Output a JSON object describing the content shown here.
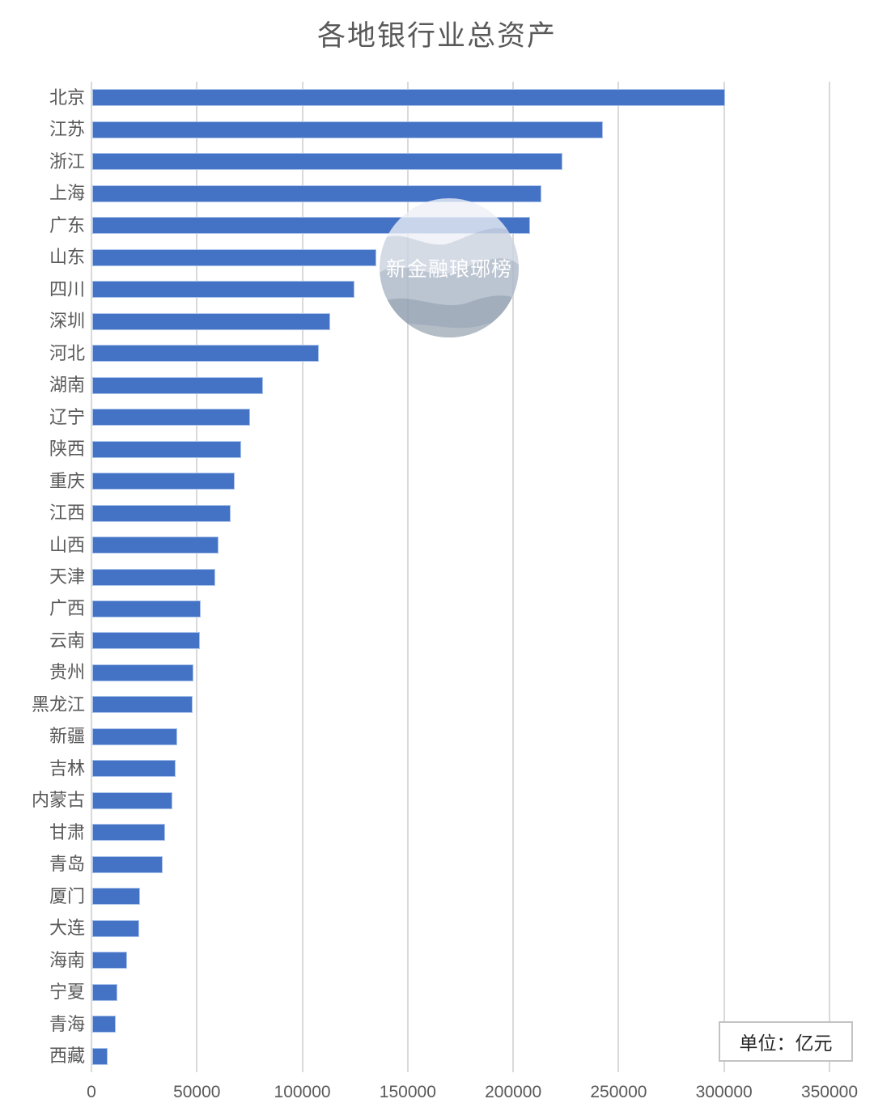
{
  "title": "各地银行业总资产",
  "unit_label": "单位：亿元",
  "watermark_text": "新金融琅琊榜",
  "colors": {
    "bar": "#4472C4",
    "bar_border": "#AAC3EB",
    "gridline": "#D9D9D9",
    "axis_text": "#595959",
    "title_text": "#595959",
    "unit_text": "#262626",
    "watermark_waves": [
      "#EDF0F5",
      "#CCD3DF",
      "#AEB8C7",
      "#93A0B0",
      "#A8B2BF"
    ]
  },
  "chart_data": {
    "type": "bar",
    "orientation": "horizontal",
    "title": "各地银行业总资产",
    "unit": "单位：亿元",
    "grid": true,
    "xlim": [
      0,
      350000
    ],
    "x_ticks": [
      0,
      50000,
      100000,
      150000,
      200000,
      250000,
      300000,
      350000
    ],
    "categories": [
      "北京",
      "江苏",
      "浙江",
      "上海",
      "广东",
      "山东",
      "四川",
      "深圳",
      "河北",
      "湖南",
      "辽宁",
      "陕西",
      "重庆",
      "江西",
      "山西",
      "天津",
      "广西",
      "云南",
      "贵州",
      "黑龙江",
      "新疆",
      "吉林",
      "内蒙古",
      "甘肃",
      "青岛",
      "厦门",
      "大连",
      "海南",
      "宁夏",
      "青海",
      "西藏"
    ],
    "values": [
      300000,
      242000,
      223000,
      213000,
      207500,
      134700,
      124500,
      113000,
      107400,
      80800,
      75000,
      70500,
      67400,
      65500,
      60000,
      58400,
      51500,
      51100,
      48100,
      47400,
      40300,
      39700,
      37900,
      34500,
      33400,
      22500,
      22400,
      16600,
      11800,
      11000,
      7400
    ]
  }
}
